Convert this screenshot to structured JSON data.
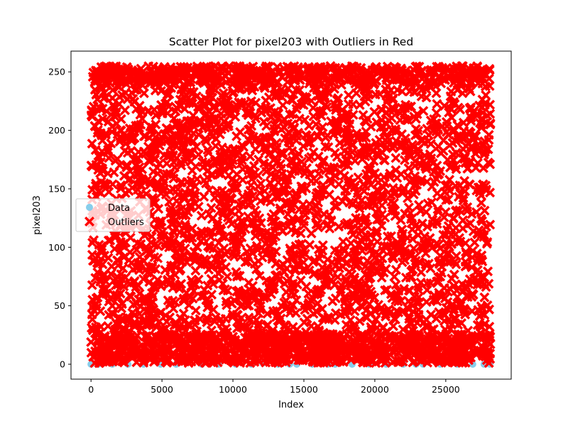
{
  "chart_data": {
    "type": "scatter",
    "title": "Scatter Plot for pixel203 with Outliers in Red",
    "xlabel": "Index",
    "ylabel": "pixel203",
    "xlim": [
      -1410,
      29610
    ],
    "ylim": [
      -12.75,
      267.75
    ],
    "xticks": [
      0,
      5000,
      10000,
      15000,
      20000,
      25000
    ],
    "yticks": [
      0,
      50,
      100,
      150,
      200,
      250
    ],
    "x_tick_labels": [
      "0",
      "5000",
      "10000",
      "15000",
      "20000",
      "25000"
    ],
    "y_tick_labels": [
      "0",
      "50",
      "100",
      "150",
      "200",
      "250"
    ],
    "legend": {
      "position": "center-left",
      "entries": [
        "Data",
        "Outliers"
      ]
    },
    "series": [
      {
        "name": "Data",
        "marker": "circle",
        "color": "#87ceeb",
        "points": [
          [
            0,
            0
          ],
          [
            500,
            0
          ],
          [
            1500,
            0
          ],
          [
            2600,
            0
          ],
          [
            3700,
            0
          ],
          [
            4900,
            0
          ],
          [
            6000,
            0
          ],
          [
            6900,
            3
          ],
          [
            7800,
            0
          ],
          [
            9000,
            0
          ],
          [
            10200,
            0
          ],
          [
            11300,
            0
          ],
          [
            12100,
            1
          ],
          [
            13200,
            0
          ],
          [
            14000,
            0
          ],
          [
            14500,
            0
          ],
          [
            15600,
            0
          ],
          [
            16700,
            0
          ],
          [
            17200,
            0
          ],
          [
            18400,
            0
          ],
          [
            19600,
            0
          ],
          [
            20800,
            0
          ],
          [
            22000,
            0
          ],
          [
            22900,
            0
          ],
          [
            23400,
            0
          ],
          [
            24600,
            0
          ],
          [
            25800,
            0
          ],
          [
            26900,
            0
          ],
          [
            27700,
            0
          ],
          [
            28100,
            0
          ]
        ]
      },
      {
        "name": "Outliers",
        "marker": "X",
        "color": "#ff0000",
        "x_range": [
          0,
          28150
        ],
        "y_range": [
          1,
          255
        ],
        "description_count": 4200
      }
    ]
  }
}
